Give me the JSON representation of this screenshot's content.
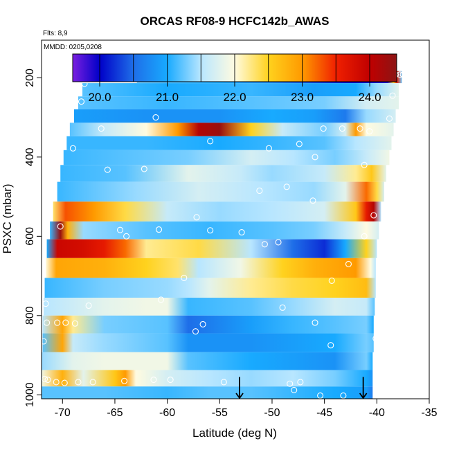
{
  "chart_data": {
    "type": "heatmap",
    "title": "ORCAS RF08-9 HCFC142b_AWAS",
    "notes": {
      "flights": "Flts: 8,9",
      "dates": "MMDD: 0205,0208"
    },
    "xlabel": "Latitude (deg N)",
    "ylabel": "PSXC (mbar)",
    "xlim": [
      -72,
      -35
    ],
    "ylim": [
      1010,
      105
    ],
    "y_reversed": true,
    "x_ticks": [
      -70,
      -65,
      -60,
      -55,
      -50,
      -45,
      -40,
      -35
    ],
    "x_tick_labels": [
      "-70",
      "-65",
      "-60",
      "-55",
      "-50",
      "-45",
      "-40",
      "-35"
    ],
    "y_ticks": [
      200,
      400,
      600,
      800,
      1000
    ],
    "y_tick_labels": [
      "200",
      "400",
      "600",
      "800",
      "1000"
    ],
    "colorbar": {
      "range": [
        19.6,
        24.4
      ],
      "ticks": [
        20.0,
        21.0,
        22.0,
        23.0,
        24.0
      ],
      "tick_labels": [
        "20.0",
        "21.0",
        "22.0",
        "23.0",
        "24.0"
      ],
      "bin_edges": [
        19.6,
        20.0,
        20.5,
        21.0,
        21.5,
        22.0,
        22.5,
        23.0,
        23.5,
        24.0,
        24.4
      ],
      "colors": [
        "#7a1fe0",
        "#0000c8",
        "#1e6ee8",
        "#1ab4ff",
        "#c8ecff",
        "#fffad2",
        "#ffd21e",
        "#ff8c00",
        "#e60000",
        "#8c1414"
      ]
    },
    "bands": [
      {
        "p": 195,
        "x0": -62.9,
        "x1": -37.6,
        "stops": [
          [
            -62.9,
            21.3
          ],
          [
            -55,
            21.0
          ],
          [
            -50,
            20.7
          ],
          [
            -46,
            20.3
          ],
          [
            -42,
            20.0
          ],
          [
            -39,
            19.9
          ],
          [
            -38.4,
            22.5
          ],
          [
            -38.1,
            23.6
          ],
          [
            -37.6,
            21.3
          ]
        ]
      },
      {
        "p": 232,
        "x0": -68.1,
        "x1": -37.9,
        "stops": [
          [
            -68.1,
            21.2
          ],
          [
            -60,
            21.0
          ],
          [
            -52,
            21.1
          ],
          [
            -46,
            20.9
          ],
          [
            -42,
            21.0
          ],
          [
            -40,
            21.4
          ],
          [
            -37.9,
            21.8
          ]
        ]
      },
      {
        "p": 262,
        "x0": -68.5,
        "x1": -37.9,
        "stops": [
          [
            -68.5,
            21.2
          ],
          [
            -60,
            21.1
          ],
          [
            -52,
            21.2
          ],
          [
            -45,
            21.3
          ],
          [
            -41,
            21.7
          ],
          [
            -37.9,
            21.8
          ]
        ]
      },
      {
        "p": 297,
        "x0": -68.9,
        "x1": -38.2,
        "stops": [
          [
            -68.9,
            20.9
          ],
          [
            -62,
            20.8
          ],
          [
            -55,
            20.8
          ],
          [
            -50,
            21.0
          ],
          [
            -46,
            20.9
          ],
          [
            -43,
            20.6
          ],
          [
            -41,
            21.4
          ],
          [
            -38.2,
            21.7
          ]
        ]
      },
      {
        "p": 330,
        "x0": -69.3,
        "x1": -38.4,
        "stops": [
          [
            -69.3,
            21.2
          ],
          [
            -66,
            21.6
          ],
          [
            -62,
            22.0
          ],
          [
            -59,
            23.0
          ],
          [
            -57,
            24.1
          ],
          [
            -55,
            24.3
          ],
          [
            -52,
            22.5
          ],
          [
            -49,
            21.6
          ],
          [
            -45,
            21.3
          ],
          [
            -43,
            21.7
          ],
          [
            -42,
            23.0
          ],
          [
            -41,
            22.0
          ],
          [
            -38.4,
            21.8
          ]
        ]
      },
      {
        "p": 365,
        "x0": -69.6,
        "x1": -38.6,
        "stops": [
          [
            -69.6,
            21.1
          ],
          [
            -62,
            21.1
          ],
          [
            -55,
            21.0
          ],
          [
            -50,
            21.1
          ],
          [
            -45,
            21.2
          ],
          [
            -42,
            21.5
          ],
          [
            -38.6,
            21.8
          ]
        ]
      },
      {
        "p": 400,
        "x0": -69.9,
        "x1": -38.8,
        "stops": [
          [
            -69.9,
            21.1
          ],
          [
            -64,
            21.2
          ],
          [
            -58,
            21.3
          ],
          [
            -52,
            21.7
          ],
          [
            -48,
            21.5
          ],
          [
            -44,
            21.3
          ],
          [
            -41,
            21.6
          ],
          [
            -38.8,
            21.9
          ]
        ]
      },
      {
        "p": 440,
        "x0": -70.2,
        "x1": -39.1,
        "stops": [
          [
            -70.2,
            21.1
          ],
          [
            -64,
            21.2
          ],
          [
            -58,
            21.8
          ],
          [
            -53,
            21.6
          ],
          [
            -50,
            21.4
          ],
          [
            -45,
            21.6
          ],
          [
            -42,
            22.2
          ],
          [
            -40.5,
            22.6
          ],
          [
            -39.1,
            21.8
          ]
        ]
      },
      {
        "p": 485,
        "x0": -70.5,
        "x1": -39.3,
        "stops": [
          [
            -70.5,
            21.1
          ],
          [
            -63,
            21.4
          ],
          [
            -57,
            21.7
          ],
          [
            -51,
            21.5
          ],
          [
            -46,
            21.4
          ],
          [
            -43,
            21.8
          ],
          [
            -41,
            23.2
          ],
          [
            -40,
            22.4
          ],
          [
            -39.3,
            21.7
          ]
        ]
      },
      {
        "p": 540,
        "x0": -70.9,
        "x1": -39.6,
        "stops": [
          [
            -70.9,
            22.3
          ],
          [
            -69.7,
            23.3
          ],
          [
            -67,
            23.0
          ],
          [
            -64,
            22.4
          ],
          [
            -60,
            21.6
          ],
          [
            -55,
            21.4
          ],
          [
            -50,
            21.5
          ],
          [
            -45,
            21.7
          ],
          [
            -42,
            22.6
          ],
          [
            -41,
            23.6
          ],
          [
            -40.3,
            24.1
          ],
          [
            -39.6,
            21.5
          ]
        ]
      },
      {
        "p": 585,
        "x0": -71.2,
        "x1": -39.8,
        "stops": [
          [
            -71.2,
            21.1
          ],
          [
            -70.2,
            24.3
          ],
          [
            -69.5,
            22.8
          ],
          [
            -68,
            21.4
          ],
          [
            -62,
            21.2
          ],
          [
            -56,
            21.1
          ],
          [
            -50,
            21.2
          ],
          [
            -46,
            21.3
          ],
          [
            -43,
            21.6
          ],
          [
            -41,
            22.0
          ],
          [
            -39.8,
            21.7
          ]
        ]
      },
      {
        "p": 630,
        "x0": -71.5,
        "x1": -40.0,
        "stops": [
          [
            -71.5,
            21.0
          ],
          [
            -70.5,
            23.9
          ],
          [
            -68,
            23.8
          ],
          [
            -66,
            23.6
          ],
          [
            -64,
            23.2
          ],
          [
            -62,
            22.2
          ],
          [
            -57,
            22.4
          ],
          [
            -52,
            21.5
          ],
          [
            -48,
            20.5
          ],
          [
            -45,
            20.2
          ],
          [
            -43,
            21.0
          ],
          [
            -41,
            22.5
          ],
          [
            -40,
            21.5
          ]
        ]
      },
      {
        "p": 680,
        "x0": -71.6,
        "x1": -40.1,
        "stops": [
          [
            -71.6,
            22.0
          ],
          [
            -70.6,
            22.9
          ],
          [
            -66,
            22.8
          ],
          [
            -62,
            22.5
          ],
          [
            -59,
            22.3
          ],
          [
            -57,
            21.5
          ],
          [
            -53,
            21.9
          ],
          [
            -49,
            22.5
          ],
          [
            -46,
            22.8
          ],
          [
            -42,
            23.0
          ],
          [
            -40.6,
            22.0
          ],
          [
            -40.1,
            21.5
          ]
        ]
      },
      {
        "p": 730,
        "x0": -71.7,
        "x1": -40.1,
        "stops": [
          [
            -71.7,
            21.1
          ],
          [
            -66,
            21.3
          ],
          [
            -60,
            21.4
          ],
          [
            -58,
            21.5
          ],
          [
            -56,
            21.8
          ],
          [
            -52,
            22.2
          ],
          [
            -48,
            22.4
          ],
          [
            -44,
            22.5
          ],
          [
            -41,
            22.7
          ],
          [
            -40.1,
            21.5
          ]
        ]
      },
      {
        "p": 780,
        "x0": -71.8,
        "x1": -40.2,
        "stops": [
          [
            -71.8,
            21.5
          ],
          [
            -66,
            21.8
          ],
          [
            -62,
            21.9
          ],
          [
            -60,
            21.9
          ],
          [
            -58,
            21.1
          ],
          [
            -52,
            21.2
          ],
          [
            -48,
            21.4
          ],
          [
            -44,
            21.7
          ],
          [
            -41,
            21.6
          ],
          [
            -40.2,
            21.2
          ]
        ]
      },
      {
        "p": 820,
        "x0": -71.9,
        "x1": -40.3,
        "stops": [
          [
            -71.9,
            21.5
          ],
          [
            -70,
            22.9
          ],
          [
            -69,
            22.2
          ],
          [
            -66,
            21.3
          ],
          [
            -60,
            21.2
          ],
          [
            -58,
            20.5
          ],
          [
            -52,
            20.9
          ],
          [
            -48,
            21.1
          ],
          [
            -44,
            21.2
          ],
          [
            -41,
            21.3
          ],
          [
            -40.3,
            21.0
          ]
        ]
      },
      {
        "p": 870,
        "x0": -71.9,
        "x1": -40.3,
        "stops": [
          [
            -71.9,
            21.2
          ],
          [
            -70,
            22.9
          ],
          [
            -69,
            21.6
          ],
          [
            -66,
            21.4
          ],
          [
            -60,
            21.2
          ],
          [
            -58,
            20.8
          ],
          [
            -52,
            20.8
          ],
          [
            -48,
            20.9
          ],
          [
            -44,
            21.0
          ],
          [
            -41,
            21.3
          ],
          [
            -40.3,
            21.2
          ]
        ]
      },
      {
        "p": 915,
        "x0": -72.0,
        "x1": -40.4,
        "stops": [
          [
            -72.0,
            21.4
          ],
          [
            -69,
            21.8
          ],
          [
            -66,
            21.9
          ],
          [
            -60,
            21.9
          ],
          [
            -58,
            21.2
          ],
          [
            -52,
            21.0
          ],
          [
            -48,
            20.9
          ],
          [
            -44,
            20.8
          ],
          [
            -41,
            21.3
          ],
          [
            -40.4,
            21.0
          ]
        ]
      },
      {
        "p": 960,
        "x0": -72.0,
        "x1": -40.4,
        "stops": [
          [
            -72.0,
            21.9
          ],
          [
            -70,
            22.8
          ],
          [
            -68,
            21.8
          ],
          [
            -65,
            22.6
          ],
          [
            -64,
            23.0
          ],
          [
            -63,
            22.0
          ],
          [
            -60,
            21.7
          ],
          [
            -56,
            21.5
          ],
          [
            -52,
            21.4
          ],
          [
            -48,
            21.5
          ],
          [
            -44,
            21.3
          ],
          [
            -41,
            21.0
          ],
          [
            -40.4,
            20.8
          ]
        ]
      },
      {
        "p": 998,
        "x0": -72.0,
        "x1": -40.4,
        "stops": [
          [
            -72.0,
            21.2
          ],
          [
            -66,
            21.2
          ],
          [
            -60,
            21.1
          ],
          [
            -56,
            21.2
          ],
          [
            -52,
            21.2
          ],
          [
            -48,
            21.1
          ],
          [
            -44,
            21.0
          ],
          [
            -41,
            20.9
          ],
          [
            -40.4,
            20.6
          ]
        ]
      }
    ],
    "samples": [
      [
        -62.8,
        192
      ],
      [
        -57.3,
        188
      ],
      [
        -55.0,
        202
      ],
      [
        -51.5,
        190
      ],
      [
        -50.5,
        202
      ],
      [
        -38.5,
        192
      ],
      [
        -38.2,
        192
      ],
      [
        -37.8,
        192
      ],
      [
        -37.5,
        192
      ],
      [
        -37.1,
        192
      ],
      [
        -62.6,
        203
      ],
      [
        -67.9,
        215
      ],
      [
        -68.2,
        260
      ],
      [
        -38.5,
        245
      ],
      [
        -66.3,
        328
      ],
      [
        -61.1,
        300
      ],
      [
        -55.9,
        360
      ],
      [
        -45.1,
        328
      ],
      [
        -43.3,
        328
      ],
      [
        -41.6,
        328
      ],
      [
        -40.7,
        335
      ],
      [
        -38.8,
        303
      ],
      [
        -69.0,
        378
      ],
      [
        -50.3,
        378
      ],
      [
        -47.4,
        367
      ],
      [
        -45.9,
        400
      ],
      [
        -62.2,
        430
      ],
      [
        -65.7,
        432
      ],
      [
        -51.2,
        485
      ],
      [
        -48.6,
        475
      ],
      [
        -46.1,
        510
      ],
      [
        -41.2,
        420
      ],
      [
        -70.2,
        575
      ],
      [
        -64.5,
        584
      ],
      [
        -60.8,
        583
      ],
      [
        -57.2,
        552
      ],
      [
        -55.9,
        585
      ],
      [
        -63.9,
        600
      ],
      [
        -52.9,
        590
      ],
      [
        -50.7,
        620
      ],
      [
        -49.4,
        615
      ],
      [
        -41.2,
        600
      ],
      [
        -38.9,
        580
      ],
      [
        -40.3,
        547
      ],
      [
        -42.7,
        670
      ],
      [
        -44.3,
        712
      ],
      [
        -58.4,
        705
      ],
      [
        -67.5,
        775
      ],
      [
        -60.6,
        760
      ],
      [
        -71.6,
        770
      ],
      [
        -71.5,
        818
      ],
      [
        -70.5,
        818
      ],
      [
        -69.7,
        818
      ],
      [
        -68.8,
        820
      ],
      [
        -71.8,
        865
      ],
      [
        -57.3,
        840
      ],
      [
        -56.6,
        822
      ],
      [
        -45.9,
        818
      ],
      [
        -49.0,
        780
      ],
      [
        -44.4,
        875
      ],
      [
        -40.1,
        858
      ],
      [
        -71.7,
        960
      ],
      [
        -71.4,
        962
      ],
      [
        -70.6,
        968
      ],
      [
        -69.8,
        970
      ],
      [
        -68.5,
        968
      ],
      [
        -67.1,
        968
      ],
      [
        -64.1,
        965
      ],
      [
        -61.3,
        962
      ],
      [
        -59.7,
        962
      ],
      [
        -54.6,
        968
      ],
      [
        -48.3,
        972
      ],
      [
        -47.3,
        968
      ],
      [
        -47.9,
        988
      ],
      [
        -45.4,
        1002
      ],
      [
        -43.2,
        1002
      ],
      [
        -39.8,
        1004
      ]
    ],
    "markers": [
      {
        "x": -53.1,
        "p0": 955,
        "p1": 1010
      },
      {
        "x": -41.3,
        "p0": 955,
        "p1": 1010
      }
    ]
  }
}
